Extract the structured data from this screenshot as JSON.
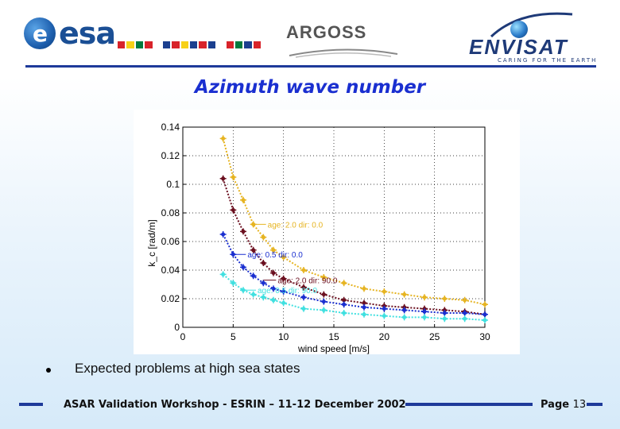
{
  "header": {
    "esa_logo_text": "esa",
    "argoss_logo_text": "ARGOSS",
    "envisat_logo_text": "ENVISAT",
    "envisat_tagline": "CARING FOR THE EARTH",
    "flag_colors": [
      "#d8232a",
      "#f7d117",
      "#007a3d",
      "#d8232a",
      "#ffffff",
      "#1b3f8f",
      "#d8232a",
      "#f7d117",
      "#1b3f8f",
      "#d8232a",
      "#1b3f8f",
      "#ffffff",
      "#d8232a",
      "#007a3d",
      "#1b3f8f",
      "#d8232a"
    ]
  },
  "slide": {
    "title": "Azimuth wave number",
    "bullet": "Expected problems at high sea states"
  },
  "footer": {
    "text": "ASAR Validation Workshop - ESRIN – 11-12 December 2002",
    "page_label": "Page",
    "page_number": "13"
  },
  "chart_data": {
    "type": "line",
    "title": "",
    "xlabel": "wind speed [m/s]",
    "ylabel": "k_c [rad/m]",
    "xlim": [
      0,
      30
    ],
    "ylim": [
      0,
      0.14
    ],
    "xticks": [
      0,
      5,
      10,
      15,
      20,
      25,
      30
    ],
    "yticks": [
      0,
      0.02,
      0.04,
      0.06,
      0.08,
      0.1,
      0.12,
      0.14
    ],
    "xtick_labels": [
      "0",
      "5",
      "10",
      "15",
      "20",
      "25",
      "30"
    ],
    "ytick_labels": [
      "0",
      "0.02",
      "0.04",
      "0.06",
      "0.08",
      "0.1",
      "0.12",
      "0.14"
    ],
    "grid": true,
    "x": [
      4,
      5,
      6,
      7,
      8,
      9,
      10,
      12,
      14,
      16,
      18,
      20,
      22,
      24,
      26,
      28,
      30
    ],
    "series": [
      {
        "color": "#e6b422",
        "values": [
          0.132,
          0.105,
          0.089,
          0.072,
          0.063,
          0.054,
          0.049,
          0.04,
          0.035,
          0.031,
          0.027,
          0.025,
          0.023,
          0.021,
          0.02,
          0.019,
          0.016
        ]
      },
      {
        "color": "#6b0f1f",
        "values": [
          0.104,
          0.082,
          0.067,
          0.054,
          0.045,
          0.038,
          0.034,
          0.028,
          0.023,
          0.019,
          0.017,
          0.015,
          0.014,
          0.013,
          0.012,
          0.011,
          0.009
        ]
      },
      {
        "color": "#1a2fd0",
        "values": [
          0.065,
          0.051,
          0.042,
          0.036,
          0.031,
          0.027,
          0.025,
          0.021,
          0.018,
          0.016,
          0.014,
          0.013,
          0.012,
          0.011,
          0.01,
          0.01,
          0.009
        ]
      },
      {
        "color": "#40e0e0",
        "values": [
          0.037,
          0.031,
          0.026,
          0.023,
          0.021,
          0.019,
          0.017,
          0.013,
          0.012,
          0.01,
          0.009,
          0.008,
          0.007,
          0.007,
          0.006,
          0.006,
          0.005
        ]
      }
    ],
    "annotations": [
      {
        "text": "age: 2.0 dir: 0.0",
        "color": "#e6b422",
        "x": 7,
        "y": 0.072
      },
      {
        "text": "age: 0.5 dir: 0.0",
        "color": "#1a2fd0",
        "x": 5,
        "y": 0.051
      },
      {
        "text": "age: 2.0 dir: 90.0",
        "color": "#6b0f1f",
        "x": 8,
        "y": 0.033
      },
      {
        "text": "age: 0.5 dir: 90.0",
        "color": "#40e0e0",
        "x": 6,
        "y": 0.026
      }
    ]
  }
}
